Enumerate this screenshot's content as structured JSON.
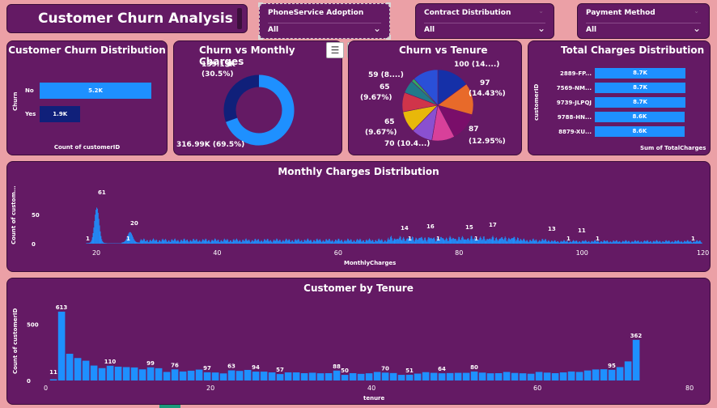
{
  "title": "Customer Churn Analysis",
  "slicers": [
    {
      "label": "PhoneService Adoption",
      "value": "All"
    },
    {
      "label": "Contract Distribution",
      "value": "All"
    },
    {
      "label": "Payment Method",
      "value": "All"
    }
  ],
  "toolbar": {
    "filter_icon": "filter-icon",
    "focus_icon": "focus-mode-icon",
    "more_icon": "more-options-icon"
  },
  "churn_distribution": {
    "title": "Customer Churn Distribution",
    "ylabel": "Churn",
    "xlabel": "Count of customerID",
    "bars": [
      {
        "category": "No",
        "value": 5.2,
        "label": "5.2K",
        "color": "#1e90ff"
      },
      {
        "category": "Yes",
        "value": 1.9,
        "label": "1.9K",
        "color": "#10207a"
      }
    ]
  },
  "churn_monthly": {
    "title": "Churn vs Monthly Charges",
    "slices": [
      {
        "value": 69.5,
        "label": "316.99K (69.5%)",
        "color": "#1e90ff"
      },
      {
        "value": 30.5,
        "label_line1": "139.13K",
        "label_line2": "(30.5%)",
        "color": "#10207a"
      }
    ]
  },
  "churn_tenure": {
    "title": "Churn vs Tenure",
    "labels": [
      {
        "text": "100 (14....)"
      },
      {
        "text": "97"
      },
      {
        "text": "(14.43%)"
      },
      {
        "text": "87"
      },
      {
        "text": "(12.95%)"
      },
      {
        "text": "70 (10.4...)"
      },
      {
        "text": "65"
      },
      {
        "text": "(9.67%)"
      },
      {
        "text": "65"
      },
      {
        "text": "(9.67%)"
      },
      {
        "text": "59 (8....)"
      }
    ],
    "slices": [
      {
        "value": 14.9,
        "color": "#1530a8"
      },
      {
        "value": 14.43,
        "color": "#e86a2a"
      },
      {
        "value": 12.95,
        "color": "#7a0e6a"
      },
      {
        "value": 10.4,
        "color": "#d8409a"
      },
      {
        "value": 9.67,
        "color": "#8a50d0"
      },
      {
        "value": 9.67,
        "color": "#e8b80a"
      },
      {
        "value": 8.8,
        "color": "#d0344a"
      },
      {
        "value": 6.0,
        "color": "#207a8a"
      },
      {
        "value": 1.5,
        "color": "#30a860"
      },
      {
        "value": 11.68,
        "color": "#2a50d8"
      }
    ]
  },
  "total_charges": {
    "title": "Total Charges Distribution",
    "ylabel": "customerID",
    "xlabel": "Sum of TotalCharges",
    "bars": [
      {
        "category": "2889-FP...",
        "value": 8.7,
        "label": "8.7K"
      },
      {
        "category": "7569-NM...",
        "value": 8.7,
        "label": "8.7K"
      },
      {
        "category": "9739-JLPQJ",
        "value": 8.7,
        "label": "8.7K"
      },
      {
        "category": "9788-HN...",
        "value": 8.6,
        "label": "8.6K"
      },
      {
        "category": "8879-XU...",
        "value": 8.6,
        "label": "8.6K"
      }
    ]
  },
  "monthly_dist": {
    "title": "Monthly Charges Distribution",
    "xlabel": "MonthlyCharges",
    "ylabel": "Count of custom...",
    "xticks": [
      "20",
      "40",
      "60",
      "80",
      "100",
      "120"
    ],
    "yticks": [
      "0",
      "50"
    ],
    "annotations": [
      "1",
      "61",
      "1",
      "20",
      "14",
      "1",
      "16",
      "1",
      "15",
      "1",
      "17",
      "13",
      "1",
      "11",
      "1",
      "1"
    ]
  },
  "tenure_chart": {
    "title": "Customer by Tenure",
    "xlabel": "tenure",
    "ylabel": "Count of customerID",
    "xticks": [
      "0",
      "20",
      "40",
      "60",
      "80"
    ],
    "yticks": [
      "0",
      "500"
    ],
    "annotations": [
      "11",
      "613",
      "110",
      "99",
      "76",
      "97",
      "63",
      "94",
      "57",
      "88",
      "50",
      "70",
      "51",
      "64",
      "80",
      "95",
      "362"
    ]
  },
  "chart_data": [
    {
      "type": "bar",
      "title": "Customer Churn Distribution",
      "categories": [
        "No",
        "Yes"
      ],
      "values": [
        5200,
        1900
      ],
      "xlabel": "Count of customerID",
      "ylabel": "Churn"
    },
    {
      "type": "pie",
      "title": "Churn vs Monthly Charges",
      "categories": [
        "",
        ""
      ],
      "values": [
        316990,
        139130
      ]
    },
    {
      "type": "pie",
      "title": "Churn vs Tenure",
      "values": [
        100,
        97,
        87,
        70,
        65,
        65,
        59
      ]
    },
    {
      "type": "bar",
      "title": "Total Charges Distribution",
      "categories": [
        "2889-FP...",
        "7569-NM...",
        "9739-JLPQJ",
        "9788-HN...",
        "8879-XU..."
      ],
      "values": [
        8700,
        8700,
        8700,
        8600,
        8600
      ],
      "xlabel": "Sum of TotalCharges",
      "ylabel": "customerID"
    },
    {
      "type": "bar",
      "title": "Customer by Tenure",
      "xlabel": "tenure",
      "ylabel": "Count of customerID",
      "x": [
        0,
        1,
        2,
        3,
        4,
        5,
        6,
        7,
        8,
        9,
        10,
        11,
        12,
        13,
        14,
        15,
        16,
        17,
        18,
        19,
        20,
        21,
        22,
        23,
        24,
        25,
        26,
        27,
        28,
        29,
        30,
        31,
        32,
        33,
        34,
        35,
        36,
        37,
        38,
        39,
        40,
        41,
        42,
        43,
        44,
        45,
        46,
        47,
        48,
        49,
        50,
        51,
        52,
        53,
        54,
        55,
        56,
        57,
        58,
        59,
        60,
        61,
        62,
        63,
        64,
        65,
        66,
        67,
        68,
        69,
        70,
        71,
        72
      ],
      "values": [
        11,
        613,
        238,
        200,
        176,
        133,
        110,
        131,
        123,
        119,
        116,
        99,
        117,
        109,
        76,
        99,
        80,
        87,
        97,
        73,
        71,
        63,
        90,
        85,
        94,
        79,
        79,
        72,
        57,
        72,
        72,
        65,
        69,
        64,
        65,
        88,
        50,
        65,
        59,
        64,
        76,
        70,
        66,
        50,
        51,
        61,
        74,
        68,
        64,
        66,
        68,
        68,
        80,
        70,
        64,
        65,
        76,
        67,
        64,
        60,
        76,
        70,
        65,
        72,
        80,
        76,
        89,
        98,
        100,
        95,
        119,
        170,
        362
      ],
      "yticks": [
        0,
        500
      ]
    }
  ]
}
